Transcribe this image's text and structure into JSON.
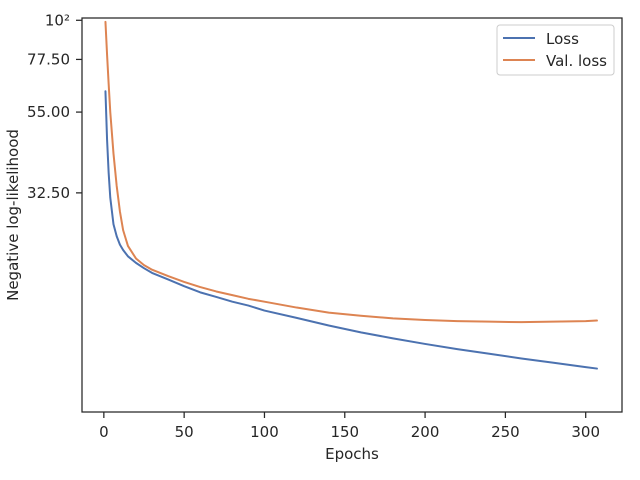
{
  "chart_data": {
    "type": "line",
    "xlabel": "Epochs",
    "ylabel": "Negative log-likelihood",
    "xscale": "linear",
    "yscale": "log",
    "xlim": [
      -13.6,
      322.6
    ],
    "ylim": [
      7.8,
      101.5
    ],
    "x_ticks": [
      0,
      50,
      100,
      150,
      200,
      250,
      300
    ],
    "x_tick_labels": [
      "0",
      "50",
      "100",
      "150",
      "200",
      "250",
      "300"
    ],
    "y_ticks": [
      32.5,
      55.0,
      77.5,
      100
    ],
    "y_tick_labels": [
      "32.50",
      "55.00",
      "77.50",
      "10²"
    ],
    "grid": false,
    "legend": {
      "placement": "top-right",
      "frame": true
    },
    "series": [
      {
        "name": "Loss",
        "color": "#4c72b0",
        "x": [
          1,
          2,
          3,
          4,
          6,
          8,
          10,
          12,
          15,
          20,
          25,
          30,
          40,
          50,
          60,
          70,
          80,
          90,
          100,
          120,
          140,
          160,
          180,
          200,
          220,
          240,
          260,
          280,
          300,
          307
        ],
        "y": [
          63,
          46,
          37,
          31.5,
          26.5,
          24.5,
          23.2,
          22.4,
          21.5,
          20.6,
          19.9,
          19.3,
          18.5,
          17.7,
          17.0,
          16.5,
          16.0,
          15.6,
          15.1,
          14.4,
          13.7,
          13.1,
          12.6,
          12.15,
          11.75,
          11.4,
          11.05,
          10.75,
          10.45,
          10.35
        ]
      },
      {
        "name": "Val. loss",
        "color": "#dd8452",
        "x": [
          1,
          2,
          3,
          4,
          6,
          8,
          10,
          12,
          15,
          20,
          25,
          30,
          40,
          50,
          60,
          70,
          80,
          90,
          100,
          120,
          140,
          160,
          180,
          200,
          220,
          240,
          260,
          280,
          300,
          307
        ],
        "y": [
          99,
          80,
          66,
          55,
          42,
          34,
          28.8,
          25.5,
          23,
          21.2,
          20.3,
          19.7,
          18.9,
          18.2,
          17.6,
          17.1,
          16.7,
          16.3,
          16.0,
          15.4,
          14.9,
          14.6,
          14.35,
          14.2,
          14.1,
          14.05,
          14.0,
          14.05,
          14.1,
          14.15
        ]
      }
    ]
  }
}
